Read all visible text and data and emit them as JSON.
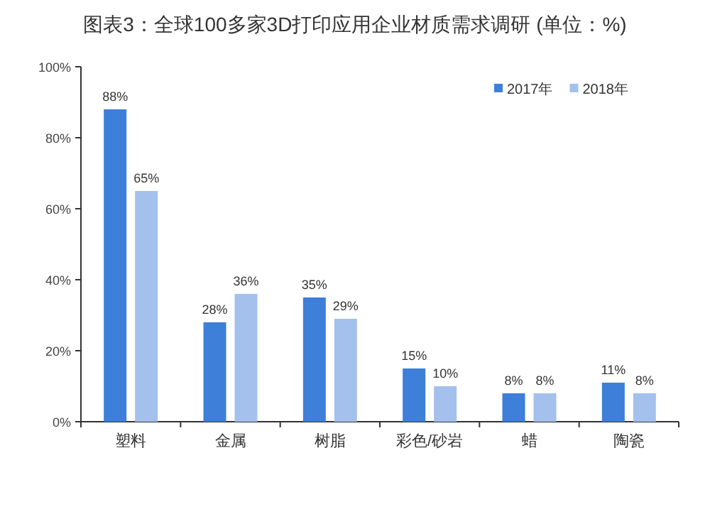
{
  "chart_data": {
    "type": "bar",
    "title": "图表3：全球100多家3D打印应用企业材质需求调研 (单位：%)",
    "categories": [
      "塑料",
      "金属",
      "树脂",
      "彩色/砂岩",
      "蜡",
      "陶瓷"
    ],
    "series": [
      {
        "name": "2017年",
        "color": "#3d7fd9",
        "values": [
          88,
          28,
          35,
          15,
          8,
          11
        ],
        "value_labels": [
          "88%",
          "28%",
          "35%",
          "15%",
          "8%",
          "11%"
        ]
      },
      {
        "name": "2018年",
        "color": "#a3c1ec",
        "values": [
          65,
          36,
          29,
          10,
          8,
          8
        ],
        "value_labels": [
          "65%",
          "36%",
          "29%",
          "10%",
          "8%",
          "8%"
        ]
      }
    ],
    "ylim": [
      0,
      100
    ],
    "yticks": [
      {
        "value": 0,
        "label": "0%"
      },
      {
        "value": 20,
        "label": "20%"
      },
      {
        "value": 40,
        "label": "40%"
      },
      {
        "value": 60,
        "label": "60%"
      },
      {
        "value": 80,
        "label": "80%"
      },
      {
        "value": 100,
        "label": "100%"
      }
    ],
    "grid": false,
    "legend": "top right"
  }
}
